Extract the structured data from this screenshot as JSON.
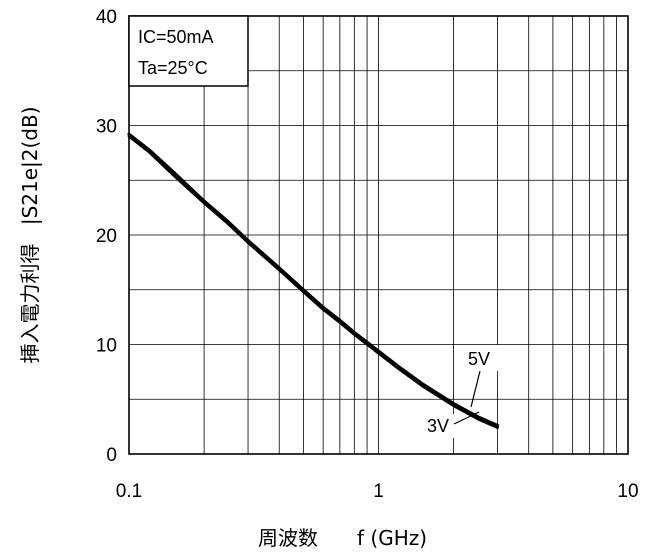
{
  "chart_data": {
    "type": "line",
    "x_scale": "log",
    "xlim": [
      0.1,
      10
    ],
    "ylim": [
      0,
      40
    ],
    "x_ticks": [
      "0.1",
      "1",
      "10"
    ],
    "y_ticks": [
      "0",
      "10",
      "20",
      "30",
      "40"
    ],
    "xlabel_main": "周波数",
    "xlabel_unit": "f (GHz)",
    "ylabel_main": "挿入電力利得",
    "ylabel_unit": "|S21e|2(dB)",
    "grid": true,
    "annotations": {
      "condition1": "IC=50mA",
      "condition2": "Ta=25°C"
    },
    "series": [
      {
        "name": "5V",
        "x": [
          0.1,
          0.12,
          0.15,
          0.2,
          0.25,
          0.3,
          0.4,
          0.5,
          0.6,
          0.7,
          0.8,
          0.9,
          1.0,
          1.2,
          1.5,
          2.0,
          2.5,
          3.0
        ],
        "y": [
          29.2,
          27.8,
          25.8,
          23.1,
          21.2,
          19.5,
          17.0,
          15.0,
          13.4,
          12.2,
          11.1,
          10.2,
          9.4,
          8.0,
          6.4,
          4.6,
          3.4,
          2.6
        ]
      },
      {
        "name": "3V",
        "x": [
          0.1,
          0.12,
          0.15,
          0.2,
          0.25,
          0.3,
          0.4,
          0.5,
          0.6,
          0.7,
          0.8,
          0.9,
          1.0,
          1.2,
          1.5,
          2.0,
          2.5,
          3.0
        ],
        "y": [
          29.0,
          27.6,
          25.5,
          22.9,
          21.0,
          19.3,
          16.8,
          14.8,
          13.2,
          12.0,
          10.9,
          10.0,
          9.2,
          7.8,
          6.2,
          4.4,
          3.2,
          2.4
        ]
      }
    ],
    "colors": {
      "line": "#000000",
      "grid": "#000000"
    }
  }
}
